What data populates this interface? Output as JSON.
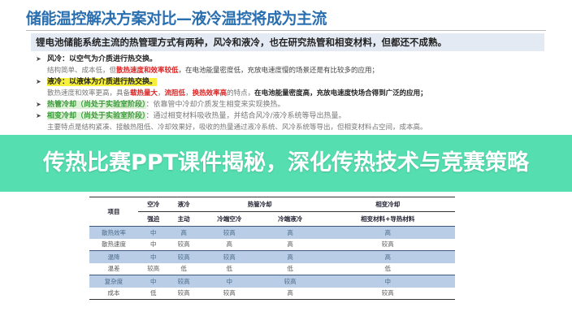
{
  "title": "储能温控解决方案对比—液冷温控将成为主流",
  "banner": "锂电池储能系统主流的热管理方式有两种，风冷和液冷，也在研究热管和相变材料，但都还不成熟。",
  "air": {
    "head": "风冷：以空气为介质进行热交换。",
    "d1": "结构简单、成本低，但",
    "d2": "散热速度和效率较低",
    "d3": "，在电池能量密度低，充放电速度慢的场景还是有比较多的应用；"
  },
  "liquid": {
    "head": "液冷：以液体为介质进行热交换。",
    "d1": "散热速度和效率更高，具备",
    "r1": "载热量大",
    "s1": "，",
    "r2": "流阻低",
    "s2": "，",
    "r3": "换热效率高",
    "d2": "的特点，",
    "d3": "在电池能量密度高，充放电速度快场合得到广泛的应用；"
  },
  "heatpipe": {
    "head": "热管冷却（尚处于实验室阶段）",
    "d1": "：依靠管中冷却介质发生相变来实现换热。"
  },
  "phase": {
    "head": "相变冷却（尚处于实验室阶段）",
    "d1": "：通过相变材料吸收热量，并结合风冷/液冷系统等导出热量。",
    "d2": "主要特点是结构紧凑、接触热阻低、冷却效果好，吸收的热量通过液冷系统、风冷系统等导出，但相变材料占空间，成本高。"
  },
  "overlay": "传热比赛PPT课件揭秘，深化传热技术与竞赛策略",
  "table": {
    "item": "项目",
    "groups": [
      "空冷",
      "液冷",
      "热管冷却",
      "相变冷却"
    ],
    "sub": [
      "强迫",
      "主动",
      "冷端空冷",
      "冷端液冷",
      "相变材料+导热材料"
    ],
    "rows": [
      [
        "散热效率",
        "中",
        "高",
        "较高",
        "高",
        "高"
      ],
      [
        "散热速度",
        "中",
        "较高",
        "高",
        "高",
        "较高"
      ],
      [
        "温降",
        "中",
        "较高",
        "较高",
        "高",
        "高"
      ],
      [
        "温差",
        "较高",
        "低",
        "低",
        "低",
        "低"
      ],
      [
        "复杂度",
        "中",
        "较高",
        "中",
        "较高",
        "中"
      ],
      [
        "成本",
        "低",
        "较高",
        "较高",
        "高",
        "较高"
      ]
    ]
  },
  "colors": {
    "title": "#2a6fb0",
    "overlay": "#48dcaa",
    "table_shade": "#b9cde6"
  }
}
